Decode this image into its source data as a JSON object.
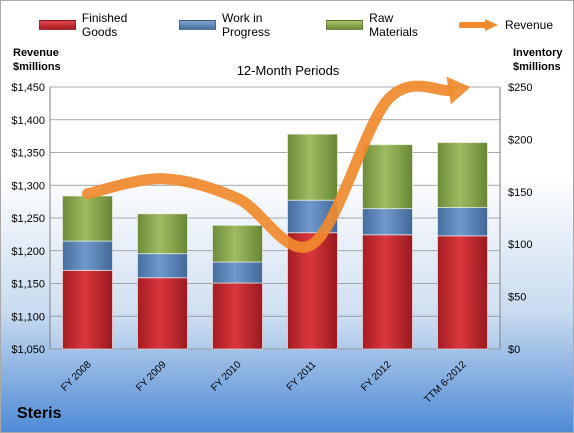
{
  "legend": {
    "finished": "Finished Goods",
    "wip": "Work in Progress",
    "raw": "Raw Materials",
    "revenue": "Revenue"
  },
  "left_axis_title": [
    "Revenue",
    "$millions"
  ],
  "right_axis_title": [
    "Inventory",
    "$millions"
  ],
  "plot_title": "12-Month Periods",
  "company": "Steris",
  "colors": {
    "finished": "#c0272d",
    "wip": "#5b86bd",
    "raw": "#8caa4f",
    "revenue": "#f08a2c"
  },
  "chart_data": {
    "type": "bar",
    "subtype": "stacked bar with line overlay",
    "title": "12-Month Periods",
    "categories": [
      "FY 2008",
      "FY 2009",
      "FY 2010",
      "FY 2011",
      "FY 2012",
      "TTM 6-2012"
    ],
    "series": [
      {
        "name": "Finished Goods",
        "axis": "right",
        "values": [
          75,
          68,
          63,
          111,
          109,
          108
        ]
      },
      {
        "name": "Work in Progress",
        "axis": "right",
        "values": [
          28,
          23,
          20,
          31,
          25,
          27
        ]
      },
      {
        "name": "Raw Materials",
        "axis": "right",
        "values": [
          43,
          38,
          35,
          63,
          61,
          62
        ]
      },
      {
        "name": "Revenue",
        "axis": "left",
        "type": "line",
        "values": [
          1287,
          1310,
          1280,
          1210,
          1430,
          1448
        ]
      }
    ],
    "y_left": {
      "label": "Revenue $millions",
      "min": 1050,
      "max": 1450,
      "step": 50,
      "ticks": [
        "$1,050",
        "$1,100",
        "$1,150",
        "$1,200",
        "$1,250",
        "$1,300",
        "$1,350",
        "$1,400",
        "$1,450"
      ]
    },
    "y_right": {
      "label": "Inventory $millions",
      "min": 0,
      "max": 250,
      "step": 50,
      "ticks": [
        "$0",
        "$50",
        "$100",
        "$150",
        "$200",
        "$250"
      ]
    },
    "grid": true,
    "legend_position": "top"
  }
}
